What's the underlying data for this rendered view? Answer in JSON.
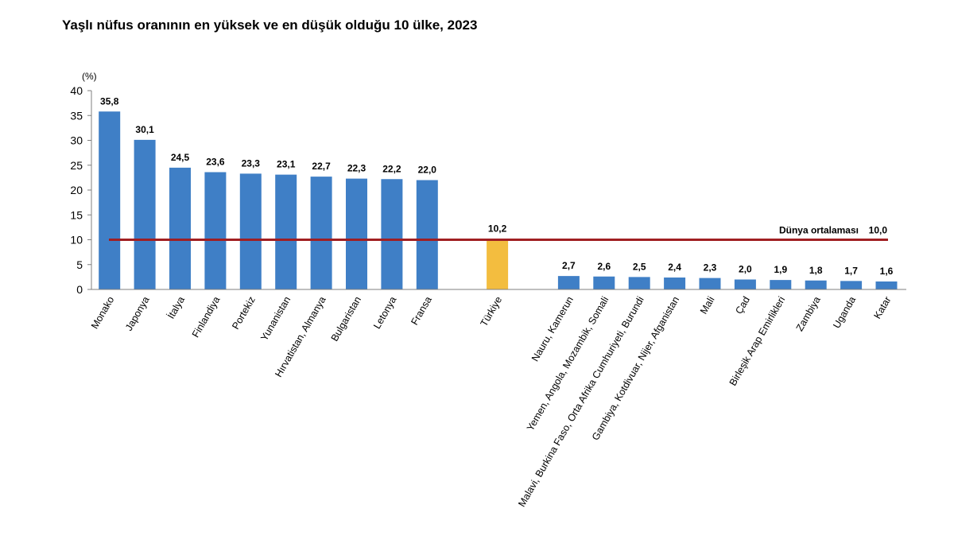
{
  "title": "Yaşlı nüfus oranının en yüksek ve en düşük olduğu 10 ülke, 2023",
  "colors": {
    "bar": "#3f7fc6",
    "highlight": "#f3bd3f",
    "average_line": "#a01f22",
    "axis": "#7f7f7f"
  },
  "chart_data": {
    "type": "bar",
    "title": "Yaşlı nüfus oranının en yüksek ve en düşük olduğu 10 ülke, 2023",
    "ylabel": "(%)",
    "xlabel": "",
    "ylim": [
      0,
      40
    ],
    "yticks": [
      0,
      5,
      10,
      15,
      20,
      25,
      30,
      35,
      40
    ],
    "categories": [
      "Monako",
      "Japonya",
      "İtalya",
      "Finlandiya",
      "Portekiz",
      "Yunanistan",
      "Hırvatistan, Almanya",
      "Bulgaristan",
      "Letonya",
      "Fransa",
      "Türkiye",
      "Nauru, Kamerun",
      "Yemen, Angola, Mozambik, Somali",
      "Malavi, Burkina Faso, Orta Afrika Cumhuriyeti, Burundi",
      "Gambiya, Kotdivuar, Nijer, Afganistan",
      "Mali",
      "Çad",
      "Birleşik Arap Emirlikleri",
      "Zambiya",
      "Uganda",
      "Katar"
    ],
    "values": [
      35.8,
      30.1,
      24.5,
      23.6,
      23.3,
      23.1,
      22.7,
      22.3,
      22.2,
      22.0,
      10.2,
      2.7,
      2.6,
      2.5,
      2.4,
      2.3,
      2.0,
      1.9,
      1.8,
      1.7,
      1.6
    ],
    "value_labels": [
      "35,8",
      "30,1",
      "24,5",
      "23,6",
      "23,3",
      "23,1",
      "22,7",
      "22,3",
      "22,2",
      "22,0",
      "10,2",
      "2,7",
      "2,6",
      "2,5",
      "2,4",
      "2,3",
      "2,0",
      "1,9",
      "1,8",
      "1,7",
      "1,6"
    ],
    "highlight": "Türkiye",
    "reference_line": {
      "label": "Dünya ortalaması",
      "value": 10.0,
      "value_label": "10,0"
    },
    "grid": false,
    "legend": "none"
  }
}
